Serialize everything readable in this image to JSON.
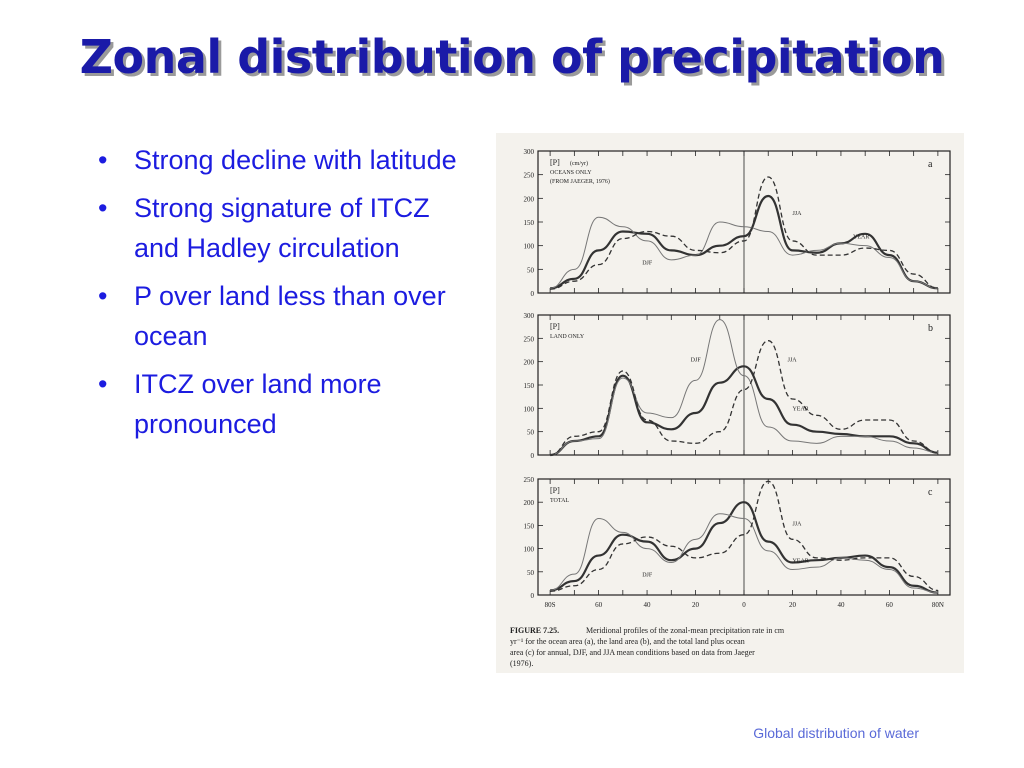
{
  "slide": {
    "title": "Zonal distribution of precipitation",
    "bullets": [
      "Strong decline with latitude",
      "Strong signature of ITCZ and Hadley circulation",
      "P over land less than over ocean",
      "ITCZ over land more pronounced"
    ],
    "footer": "Global distribution of water"
  },
  "figure": {
    "caption_label": "FIGURE 7.25.",
    "caption_text": "Meridional profiles of the zonal-mean precipitation rate in cm yr⁻¹ for the ocean area (a), the land area (b), and the total land plus ocean area (c) for annual, DJF, and JJA mean conditions based on data from Jaeger (1976).",
    "colors": {
      "year": "#333333",
      "djf": "#777777",
      "jja": "#333333",
      "frame": "#222222"
    }
  },
  "chart_data": [
    {
      "type": "line",
      "panel": "a",
      "header": [
        "[P]",
        "(cm/yr)",
        "OCEANS ONLY",
        "(FROM JAEGER, 1976)"
      ],
      "x_tick_labels": [
        "80S",
        "60",
        "40",
        "20",
        "0",
        "20",
        "40",
        "60",
        "80N"
      ],
      "x": [
        -80,
        -70,
        -60,
        -50,
        -40,
        -30,
        -20,
        -10,
        0,
        10,
        20,
        30,
        40,
        50,
        60,
        70,
        80
      ],
      "ylim": [
        0,
        300
      ],
      "yticks": [
        0,
        50,
        100,
        150,
        200,
        250,
        300
      ],
      "series": [
        {
          "name": "YEAR",
          "values": [
            10,
            30,
            90,
            130,
            125,
            90,
            80,
            100,
            120,
            205,
            90,
            85,
            105,
            125,
            80,
            25,
            10
          ]
        },
        {
          "name": "DJF",
          "values": [
            10,
            50,
            160,
            140,
            110,
            70,
            80,
            150,
            140,
            130,
            80,
            90,
            105,
            100,
            75,
            25,
            10
          ]
        },
        {
          "name": "JJA",
          "values": [
            8,
            25,
            60,
            115,
            130,
            120,
            90,
            85,
            110,
            245,
            110,
            80,
            80,
            95,
            90,
            40,
            10
          ]
        }
      ]
    },
    {
      "type": "line",
      "panel": "b",
      "header": [
        "[P]",
        "LAND ONLY"
      ],
      "x_tick_labels": [
        "80S",
        "60",
        "40",
        "20",
        "0",
        "20",
        "40",
        "60",
        "80N"
      ],
      "x": [
        -80,
        -70,
        -60,
        -50,
        -40,
        -30,
        -20,
        -10,
        0,
        10,
        20,
        30,
        40,
        50,
        60,
        70,
        80
      ],
      "ylim": [
        0,
        300
      ],
      "yticks": [
        0,
        50,
        100,
        150,
        200,
        250,
        300
      ],
      "series": [
        {
          "name": "YEAR",
          "values": [
            0,
            30,
            40,
            170,
            70,
            55,
            90,
            155,
            190,
            120,
            65,
            50,
            45,
            40,
            40,
            25,
            5
          ]
        },
        {
          "name": "DJF",
          "values": [
            0,
            30,
            35,
            165,
            90,
            80,
            160,
            290,
            170,
            60,
            30,
            25,
            40,
            40,
            30,
            15,
            5
          ]
        },
        {
          "name": "JJA",
          "values": [
            0,
            40,
            50,
            180,
            75,
            30,
            25,
            50,
            140,
            245,
            120,
            85,
            55,
            75,
            75,
            30,
            5
          ]
        }
      ]
    },
    {
      "type": "line",
      "panel": "c",
      "header": [
        "[P]",
        "TOTAL"
      ],
      "x_tick_labels": [
        "80S",
        "60",
        "40",
        "20",
        "0",
        "20",
        "40",
        "60",
        "80N"
      ],
      "x": [
        -80,
        -70,
        -60,
        -50,
        -40,
        -30,
        -20,
        -10,
        0,
        10,
        20,
        30,
        40,
        50,
        60,
        70,
        80
      ],
      "ylim": [
        0,
        250
      ],
      "yticks": [
        0,
        50,
        100,
        150,
        200,
        250
      ],
      "series": [
        {
          "name": "YEAR",
          "values": [
            10,
            30,
            85,
            130,
            115,
            75,
            100,
            155,
            200,
            115,
            70,
            75,
            80,
            85,
            60,
            20,
            5
          ]
        },
        {
          "name": "DJF",
          "values": [
            10,
            45,
            165,
            135,
            100,
            70,
            120,
            175,
            165,
            95,
            55,
            60,
            80,
            75,
            55,
            15,
            5
          ]
        },
        {
          "name": "JJA",
          "values": [
            8,
            20,
            55,
            110,
            125,
            105,
            80,
            90,
            130,
            245,
            120,
            80,
            75,
            80,
            80,
            40,
            10
          ]
        }
      ]
    }
  ]
}
